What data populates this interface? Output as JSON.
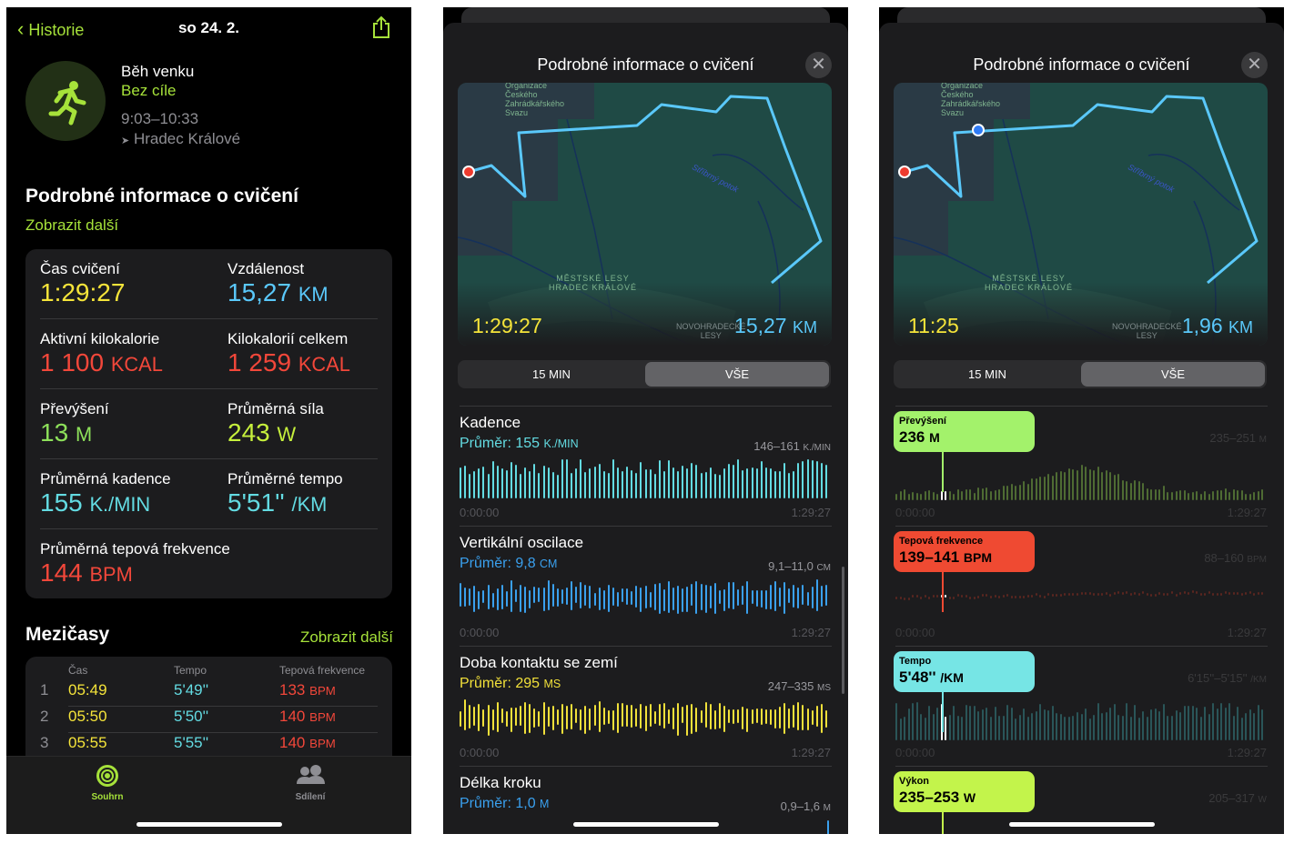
{
  "panel1": {
    "nav": {
      "back": "Historie",
      "date": "so 24. 2."
    },
    "workout": {
      "type": "Běh venku",
      "goal": "Bez cíle",
      "time": "9:03–10:33",
      "location": "Hradec Králové"
    },
    "details": {
      "title": "Podrobné informace o cvičení",
      "more": "Zobrazit další",
      "stats": [
        {
          "label": "Čas cvičení",
          "value": "1:29:27",
          "unit": "",
          "color": "#f5e43a"
        },
        {
          "label": "Vzdálenost",
          "value": "15,27",
          "unit": "km",
          "color": "#5ac8fa"
        },
        {
          "label": "Aktivní kilokalorie",
          "value": "1 100",
          "unit": "kcal",
          "color": "#f2473a"
        },
        {
          "label": "Kilokalorií celkem",
          "value": "1 259",
          "unit": "kcal",
          "color": "#f2473a"
        },
        {
          "label": "Převýšení",
          "value": "13",
          "unit": "m",
          "color": "#8de05a"
        },
        {
          "label": "Průměrná síla",
          "value": "243",
          "unit": "W",
          "color": "#c6f03c"
        },
        {
          "label": "Průměrná kadence",
          "value": "155",
          "unit": "k./min",
          "color": "#63dbe2"
        },
        {
          "label": "Průměrné tempo",
          "value": "5'51''",
          "unit": "/km",
          "color": "#63dbe2"
        },
        {
          "label": "Průměrná tepová frekvence",
          "value": "144",
          "unit": "BPM",
          "color": "#f2473a"
        }
      ]
    },
    "splits": {
      "title": "Mezičasy",
      "more": "Zobrazit další",
      "headers": [
        "Čas",
        "Tempo",
        "Tepová frekvence"
      ],
      "rows": [
        {
          "n": "1",
          "time": "05:49",
          "pace": "5'49''",
          "hr": "133",
          "unit": "BPM"
        },
        {
          "n": "2",
          "time": "05:50",
          "pace": "5'50''",
          "hr": "140",
          "unit": "BPM"
        },
        {
          "n": "3",
          "time": "05:55",
          "pace": "5'55''",
          "hr": "140",
          "unit": "BPM"
        }
      ]
    },
    "tabbar": [
      {
        "label": "Souhrn",
        "icon": "activity-rings-icon"
      },
      {
        "label": "Sdílení",
        "icon": "people-icon"
      }
    ]
  },
  "map_labels": {
    "org": "Organizace\nČeského\nZahrádkářského\nSvazu",
    "creek": "Stříbrný potok",
    "forest": "MĚSTSKÉ LESY\nHRADEC KRÁLOVÉ",
    "novo": "NOVOHRADECKÉ\nLESY"
  },
  "panel2": {
    "title": "Podrobné informace o cvičení",
    "map": {
      "duration": "1:29:27",
      "distance": "15,27",
      "unit": "km"
    },
    "segments": [
      "15 MIN",
      "VŠE"
    ],
    "metrics": [
      {
        "title": "Kadence",
        "avg": "Průměr: 155",
        "unit": "k./min",
        "range": "146–161",
        "range_unit": "k./min",
        "start": "0:00:00",
        "end": "1:29:27",
        "color": "#63dbe2"
      },
      {
        "title": "Vertikální oscilace",
        "avg": "Průměr: 9,8",
        "unit": "cm",
        "range": "9,1–11,0",
        "range_unit": "cm",
        "start": "0:00:00",
        "end": "1:29:27",
        "color": "#3aa0ee"
      },
      {
        "title": "Doba kontaktu se zemí",
        "avg": "Průměr: 295",
        "unit": "ms",
        "range": "247–335",
        "range_unit": "ms",
        "start": "0:00:00",
        "end": "1:29:27",
        "color": "#f1e03a"
      },
      {
        "title": "Délka kroku",
        "avg": "Průměr: 1,0",
        "unit": "m",
        "range": "0,9–1,6",
        "range_unit": "m",
        "start": "",
        "end": "",
        "color": "#3aa0ee"
      }
    ]
  },
  "panel3": {
    "title": "Podrobné informace o cvičení",
    "map": {
      "duration": "11:25",
      "distance": "1,96",
      "unit": "km"
    },
    "segments": [
      "15 MIN",
      "VŠE"
    ],
    "metrics": [
      {
        "label": "Převýšení",
        "value": "236",
        "unit": "m",
        "range": "235–251",
        "range_unit": "m",
        "start": "0:00:00",
        "end": "1:29:27",
        "color": "#a3f26b",
        "bar": "#4e6b33"
      },
      {
        "label": "Tepová frekvence",
        "value": "139–141",
        "unit": "BPM",
        "range": "88–160",
        "range_unit": "BPM",
        "start": "0:00:00",
        "end": "1:29:27",
        "color": "#ef4a32",
        "bar": "#5a2620"
      },
      {
        "label": "Tempo",
        "value": "5'48''",
        "unit": "/km",
        "range": "6'15''–5'15''",
        "range_unit": "/km",
        "start": "0:00:00",
        "end": "1:29:27",
        "color": "#76e5e5",
        "bar": "#2a5558"
      },
      {
        "label": "Výkon",
        "value": "235–253",
        "unit": "W",
        "range": "205–317",
        "range_unit": "W",
        "start": "",
        "end": "",
        "color": "#c3f44b",
        "bar": "#4f6320"
      }
    ]
  }
}
